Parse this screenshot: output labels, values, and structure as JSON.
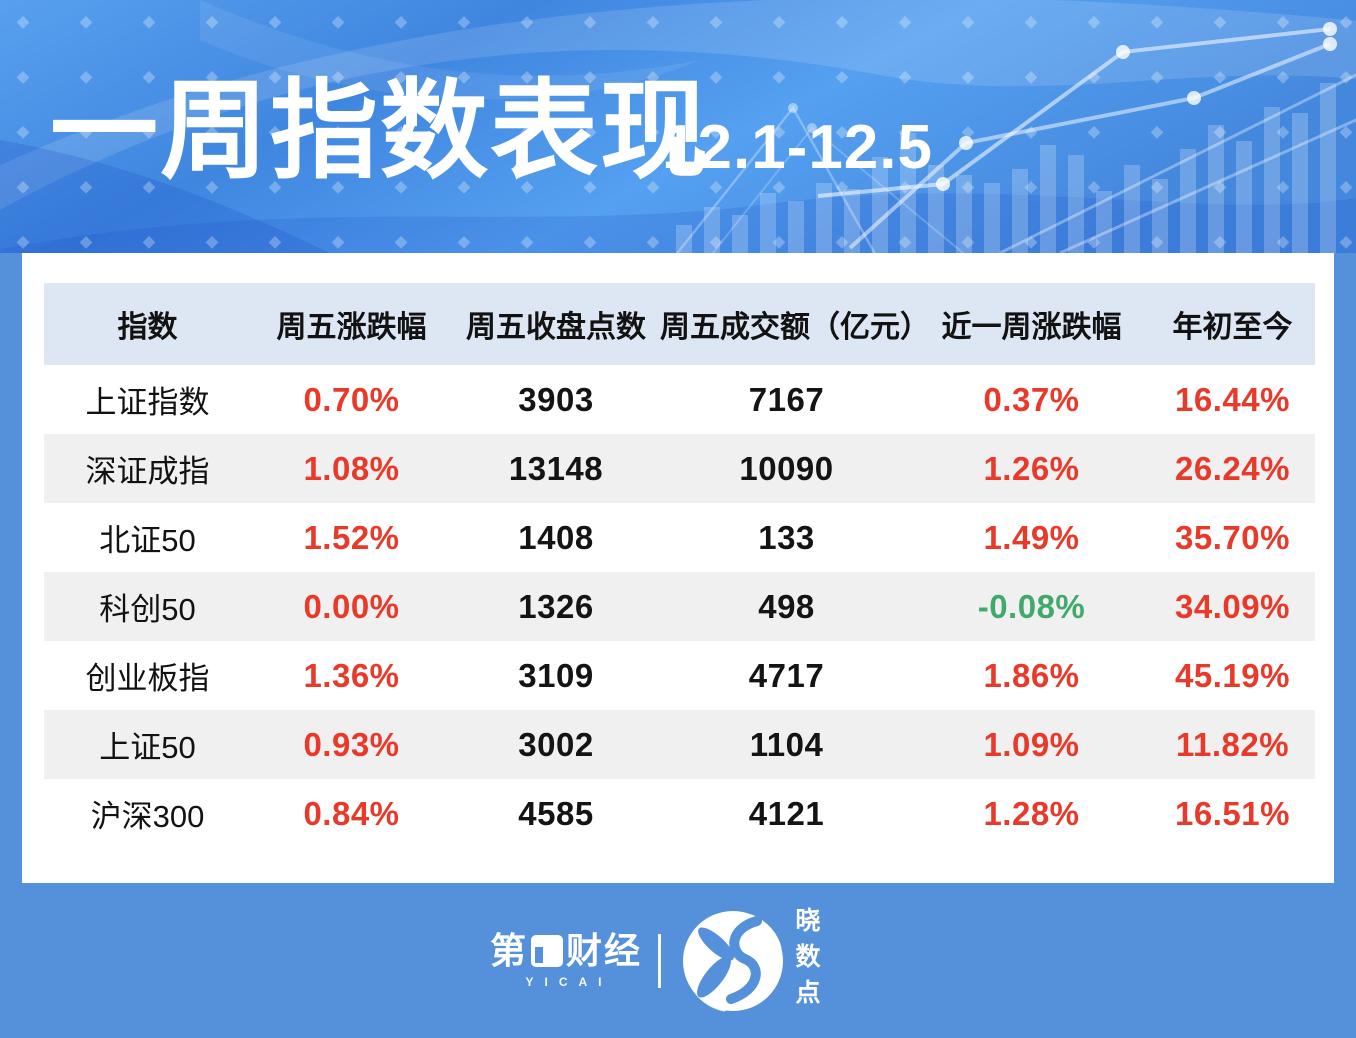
{
  "chart_data": {
    "type": "table",
    "title": "一周指数表现",
    "subtitle": "12.1-12.5",
    "columns": [
      "指数",
      "周五涨跌幅",
      "周五收盘点数",
      "周五成交额（亿元）",
      "近一周涨跌幅",
      "年初至今"
    ],
    "rows": [
      {
        "name": "上证指数",
        "fri_change": "0.70%",
        "fri_close": "3903",
        "fri_volume": "7167",
        "week_change": "0.37%",
        "ytd": "16.44%",
        "week_down": false
      },
      {
        "name": "深证成指",
        "fri_change": "1.08%",
        "fri_close": "13148",
        "fri_volume": "10090",
        "week_change": "1.26%",
        "ytd": "26.24%",
        "week_down": false
      },
      {
        "name": "北证50",
        "fri_change": "1.52%",
        "fri_close": "1408",
        "fri_volume": "133",
        "week_change": "1.49%",
        "ytd": "35.70%",
        "week_down": false
      },
      {
        "name": "科创50",
        "fri_change": "0.00%",
        "fri_close": "1326",
        "fri_volume": "498",
        "week_change": "-0.08%",
        "ytd": "34.09%",
        "week_down": true
      },
      {
        "name": "创业板指",
        "fri_change": "1.36%",
        "fri_close": "3109",
        "fri_volume": "4717",
        "week_change": "1.86%",
        "ytd": "45.19%",
        "week_down": false
      },
      {
        "name": "上证50",
        "fri_change": "0.93%",
        "fri_close": "3002",
        "fri_volume": "1104",
        "week_change": "1.09%",
        "ytd": "11.82%",
        "week_down": false
      },
      {
        "name": "沪深300",
        "fri_change": "0.84%",
        "fri_close": "4585",
        "fri_volume": "4121",
        "week_change": "1.28%",
        "ytd": "16.51%",
        "week_down": false
      }
    ],
    "legend": "none",
    "grid": "off"
  },
  "footer": {
    "yicai_pre": "第",
    "yicai_post": "财经",
    "yicai_sub": "YICAI",
    "xsd_text": "晓数点"
  },
  "colors": {
    "up_red": "#e83a2a",
    "down_green": "#43a96b",
    "header_bg": "#dde7f4",
    "alt_row_bg": "#f0f0f0",
    "page_blue": "#5590db",
    "banner_blue": "#4a8fe0"
  }
}
